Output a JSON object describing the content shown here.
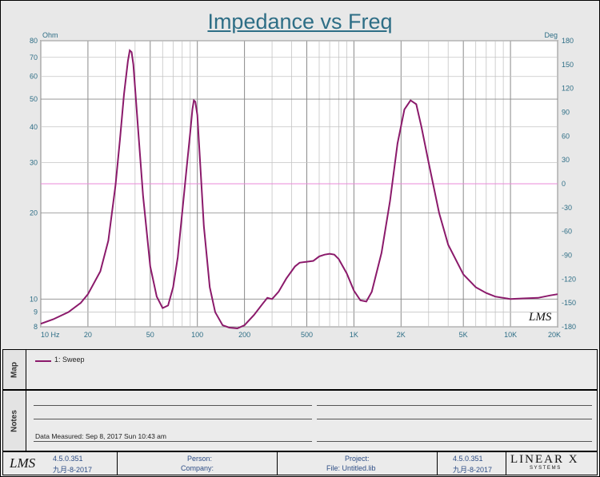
{
  "chart_data": {
    "type": "line",
    "title": "Impedance vs Freq",
    "left_unit": "Ohm",
    "right_unit": "Deg",
    "x_scale": "log",
    "xlim": [
      10,
      20000
    ],
    "y_scale": "log",
    "ylim": [
      8,
      80
    ],
    "y2lim": [
      -180,
      180
    ],
    "x_tick_labels": [
      {
        "v": 10,
        "t": "10  Hz"
      },
      {
        "v": 20,
        "t": "20"
      },
      {
        "v": 50,
        "t": "50"
      },
      {
        "v": 100,
        "t": "100"
      },
      {
        "v": 200,
        "t": "200"
      },
      {
        "v": 500,
        "t": "500"
      },
      {
        "v": 1000,
        "t": "1K"
      },
      {
        "v": 2000,
        "t": "2K"
      },
      {
        "v": 5000,
        "t": "5K"
      },
      {
        "v": 10000,
        "t": "10K"
      },
      {
        "v": 20000,
        "t": "20K"
      }
    ],
    "y_tick_labels": [
      {
        "v": 80,
        "t": "80"
      },
      {
        "v": 70,
        "t": "70"
      },
      {
        "v": 60,
        "t": "60"
      },
      {
        "v": 50,
        "t": "50"
      },
      {
        "v": 40,
        "t": "40"
      },
      {
        "v": 30,
        "t": "30"
      },
      {
        "v": 20,
        "t": "20"
      },
      {
        "v": 10,
        "t": "10"
      },
      {
        "v": 9,
        "t": "9"
      },
      {
        "v": 8,
        "t": "8"
      }
    ],
    "y2_tick_labels": [
      180,
      150,
      120,
      90,
      60,
      30,
      0,
      -30,
      -60,
      -90,
      -120,
      -150,
      -180
    ],
    "series": [
      {
        "name": "1: Sweep",
        "color": "#8b1a6b",
        "x": [
          10,
          12,
          15,
          18,
          20,
          24,
          27,
          30,
          32,
          34,
          36,
          37,
          38,
          39,
          40,
          42,
          45,
          50,
          55,
          60,
          65,
          70,
          75,
          80,
          85,
          90,
          93,
          95,
          97,
          100,
          105,
          110,
          120,
          130,
          145,
          160,
          180,
          200,
          230,
          260,
          280,
          300,
          330,
          370,
          420,
          450,
          500,
          550,
          600,
          650,
          700,
          750,
          800,
          900,
          1000,
          1100,
          1200,
          1300,
          1500,
          1700,
          1900,
          2100,
          2300,
          2500,
          2700,
          3000,
          3500,
          4000,
          5000,
          6000,
          7000,
          8000,
          9000,
          10000,
          12000,
          15000,
          18000,
          20000
        ],
        "y": [
          8.2,
          8.5,
          9.0,
          9.7,
          10.4,
          12.5,
          16.0,
          25.0,
          36.0,
          52.0,
          68.0,
          74.0,
          73.0,
          66.0,
          55.0,
          38.0,
          23.0,
          13.0,
          10.2,
          9.3,
          9.5,
          11.0,
          14.0,
          20.0,
          28.0,
          38.0,
          46.0,
          49.5,
          49.0,
          44.0,
          28.0,
          18.0,
          11.0,
          9.0,
          8.1,
          7.95,
          7.9,
          8.1,
          8.8,
          9.6,
          10.1,
          10.0,
          10.6,
          11.8,
          13.0,
          13.4,
          13.5,
          13.6,
          14.1,
          14.3,
          14.4,
          14.3,
          13.8,
          12.3,
          10.7,
          9.9,
          9.8,
          10.6,
          14.5,
          22.0,
          35.0,
          46.0,
          49.5,
          48.0,
          40.0,
          30.0,
          20.0,
          15.5,
          12.2,
          11.0,
          10.5,
          10.2,
          10.1,
          10.0,
          10.05,
          10.1,
          10.3,
          10.4
        ]
      }
    ]
  },
  "map": {
    "label": "Map",
    "legend": "1: Sweep"
  },
  "notes": {
    "label": "Notes",
    "data_measured": "Data Measured: Sep 8, 2017 Sun 10:43 am"
  },
  "footer": {
    "logo": "LMS",
    "version_left": "4.5.0.351",
    "date_left": "九月-8-2017",
    "person": "Person:",
    "company": "Company:",
    "project": "Project:",
    "file": "File: Untitled.lib",
    "version_right": "4.5.0.351",
    "date_right": "九月-8-2017",
    "brand": "LINEAR X",
    "brand_sub": "S Y S T E M S"
  },
  "watermark": "LMS",
  "colors": {
    "curve": "#8b1a6b",
    "zero_line": "#e88ad8",
    "axis_text": "#2e6e86"
  }
}
